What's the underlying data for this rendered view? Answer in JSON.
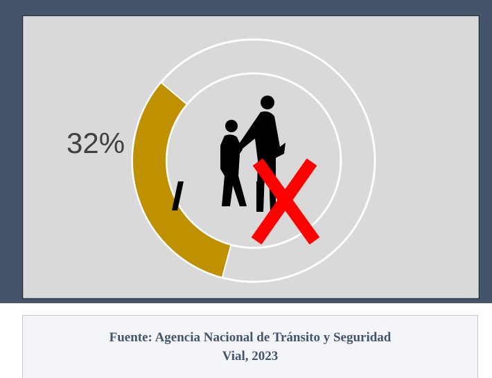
{
  "chart_data": {
    "type": "donut",
    "values": [
      32
    ],
    "value_labels": [
      "32%"
    ],
    "color": "#bf9000",
    "source": "Fuente: Agencia Nacional de Tránsito y Seguridad Vial, 2023"
  }
}
